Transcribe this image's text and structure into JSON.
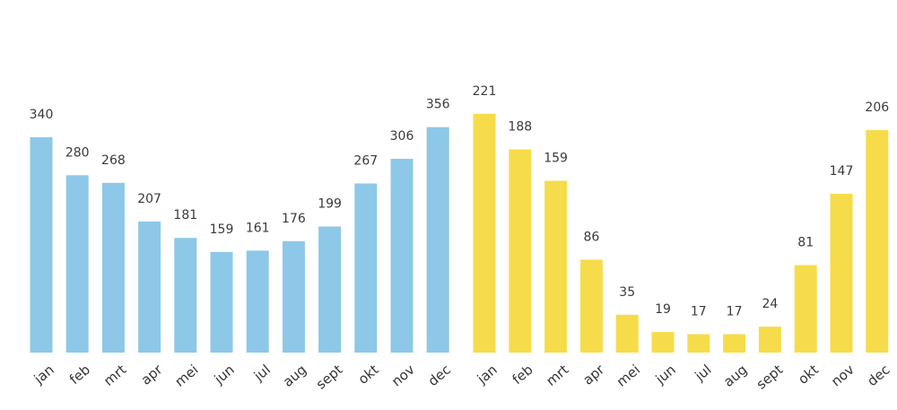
{
  "chart_data": [
    {
      "type": "bar",
      "categories": [
        "jan",
        "feb",
        "mrt",
        "apr",
        "mei",
        "jun",
        "jul",
        "aug",
        "sept",
        "okt",
        "nov",
        "dec"
      ],
      "values": [
        340,
        280,
        268,
        207,
        181,
        159,
        161,
        176,
        199,
        267,
        306,
        356
      ],
      "color": "#8DC8E8",
      "title": "",
      "xlabel": "",
      "ylabel": "",
      "grid": false,
      "legend": "none"
    },
    {
      "type": "bar",
      "categories": [
        "jan",
        "feb",
        "mrt",
        "apr",
        "mei",
        "jun",
        "jul",
        "aug",
        "sept",
        "okt",
        "nov",
        "dec"
      ],
      "values": [
        221,
        188,
        159,
        86,
        35,
        19,
        17,
        17,
        24,
        81,
        147,
        206
      ],
      "color": "#F6DC4A",
      "title": "",
      "xlabel": "",
      "ylabel": "",
      "grid": false,
      "legend": "none"
    }
  ]
}
